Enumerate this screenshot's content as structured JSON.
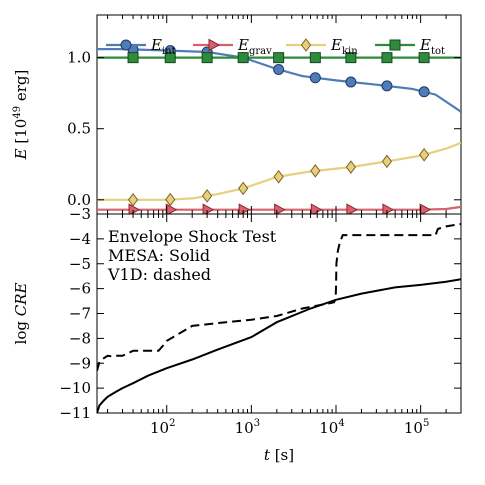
{
  "chart_data": [
    {
      "type": "line",
      "panel": "top",
      "xscale": "log",
      "xlim": [
        15,
        300000
      ],
      "ylim": [
        -0.1,
        1.3
      ],
      "ylabel_parts": {
        "var": "E",
        "open": " [10",
        "exp": "49",
        "unit": " erg]"
      },
      "ytick_labels": [
        {
          "v": 0.0,
          "label": "0.0"
        },
        {
          "v": 0.5,
          "label": "0.5"
        },
        {
          "v": 1.0,
          "label": "1.0"
        }
      ],
      "legend_position": "top",
      "series": [
        {
          "key": "int",
          "name": "E",
          "sub": "int",
          "color": "#4f7bb9",
          "edge": "#1f3a66",
          "marker": "circle",
          "x": [
            15,
            30,
            100,
            300,
            800,
            2000,
            4000,
            10000,
            30000,
            80000,
            150000,
            300000
          ],
          "y": [
            1.06,
            1.06,
            1.05,
            1.04,
            1.0,
            0.92,
            0.87,
            0.84,
            0.81,
            0.78,
            0.74,
            0.62
          ],
          "markers_x": [
            40,
            110,
            300,
            800,
            2100,
            5700,
            15000,
            40000,
            110000
          ]
        },
        {
          "key": "grav",
          "name": "E",
          "sub": "grav",
          "color": "#d9616c",
          "edge": "#8a2632",
          "marker": "triangle-right",
          "x": [
            15,
            1000,
            10000,
            100000,
            200000,
            300000
          ],
          "y": [
            -0.07,
            -0.07,
            -0.07,
            -0.07,
            -0.065,
            -0.05
          ],
          "markers_x": [
            40,
            110,
            300,
            800,
            2100,
            5700,
            15000,
            40000,
            110000
          ]
        },
        {
          "key": "kin",
          "name": "E",
          "sub": "kin",
          "color": "#e6cf7e",
          "edge": "#7a6520",
          "marker": "diamond",
          "x": [
            15,
            100,
            200,
            400,
            800,
            2000,
            5000,
            15000,
            40000,
            100000,
            200000,
            300000
          ],
          "y": [
            0.0,
            0.0,
            0.01,
            0.04,
            0.08,
            0.16,
            0.2,
            0.23,
            0.27,
            0.31,
            0.36,
            0.4
          ],
          "markers_x": [
            40,
            110,
            300,
            800,
            2100,
            5700,
            15000,
            40000,
            110000
          ]
        },
        {
          "key": "tot",
          "name": "E",
          "sub": "tot",
          "color": "#2e8b3e",
          "edge": "#134a1c",
          "marker": "square",
          "x": [
            15,
            100,
            1000,
            10000,
            100000,
            300000
          ],
          "y": [
            1.0,
            1.0,
            1.0,
            1.0,
            1.0,
            1.0
          ],
          "markers_x": [
            40,
            110,
            300,
            800,
            2100,
            5700,
            15000,
            40000,
            110000
          ]
        }
      ]
    },
    {
      "type": "line",
      "panel": "bottom",
      "xscale": "log",
      "xlim": [
        15,
        300000
      ],
      "ylim": [
        -11,
        -3
      ],
      "ylabel_parts": {
        "log": "log ",
        "var": "CRE"
      },
      "xlabel_parts": {
        "var": "t",
        "unit": " [s]"
      },
      "ytick_labels": [
        {
          "v": -11,
          "label": "−11"
        },
        {
          "v": -10,
          "label": "−10"
        },
        {
          "v": -9,
          "label": "−9"
        },
        {
          "v": -8,
          "label": "−8"
        },
        {
          "v": -7,
          "label": "−7"
        },
        {
          "v": -6,
          "label": "−6"
        },
        {
          "v": -5,
          "label": "−5"
        },
        {
          "v": -4,
          "label": "−4"
        },
        {
          "v": -3,
          "label": "−3"
        }
      ],
      "xtick_labels": [
        {
          "v": 100,
          "base": "10",
          "exp": "2"
        },
        {
          "v": 1000,
          "base": "10",
          "exp": "3"
        },
        {
          "v": 10000,
          "base": "10",
          "exp": "4"
        },
        {
          "v": 100000,
          "base": "10",
          "exp": "5"
        }
      ],
      "annotation": [
        "Envelope Shock Test",
        "MESA: Solid",
        "V1D: dashed"
      ],
      "series": [
        {
          "key": "mesa",
          "style": "solid",
          "color": "#000000",
          "x": [
            15,
            16,
            18,
            20,
            25,
            30,
            40,
            60,
            100,
            200,
            400,
            1000,
            2000,
            5000,
            10000,
            20000,
            50000,
            100000,
            200000,
            300000
          ],
          "y": [
            -11.0,
            -10.7,
            -10.5,
            -10.35,
            -10.15,
            -10.0,
            -9.8,
            -9.5,
            -9.2,
            -8.85,
            -8.45,
            -7.95,
            -7.35,
            -6.8,
            -6.45,
            -6.2,
            -5.95,
            -5.85,
            -5.72,
            -5.62
          ]
        },
        {
          "key": "v1d",
          "style": "dashed",
          "color": "#000000",
          "x": [
            15,
            16,
            18,
            20,
            22,
            25,
            30,
            40,
            80,
            90,
            100,
            200,
            500,
            1000,
            2000,
            4000,
            8000,
            9500,
            9900,
            10000,
            10100,
            10500,
            11000,
            12000,
            30000,
            100000,
            150000,
            160000,
            200000,
            300000
          ],
          "y": [
            -9.3,
            -8.95,
            -8.8,
            -8.7,
            -8.72,
            -8.7,
            -8.7,
            -8.5,
            -8.5,
            -8.3,
            -8.1,
            -7.5,
            -7.35,
            -7.25,
            -7.1,
            -6.8,
            -6.6,
            -6.55,
            -6.4,
            -6.0,
            -5.0,
            -4.5,
            -4.2,
            -3.85,
            -3.85,
            -3.85,
            -3.85,
            -3.6,
            -3.5,
            -3.4
          ]
        }
      ]
    }
  ]
}
